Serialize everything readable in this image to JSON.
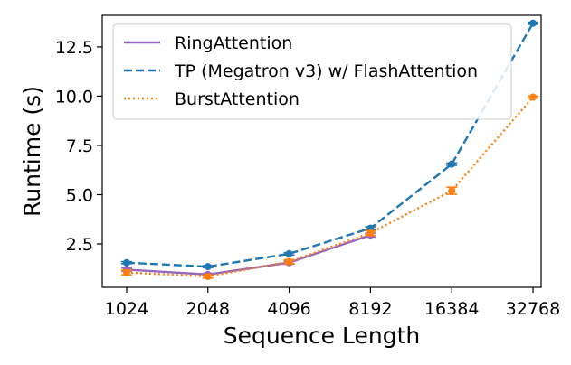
{
  "chart_data": {
    "type": "line",
    "xlabel": "Sequence Length",
    "ylabel": "Runtime (s)",
    "categories": [
      "1024",
      "2048",
      "4096",
      "8192",
      "16384",
      "32768"
    ],
    "y_ticks": [
      2.5,
      5.0,
      7.5,
      10.0,
      12.5
    ],
    "y_tick_labels": [
      "2.5",
      "5.0",
      "7.5",
      "10.0",
      "12.5"
    ],
    "ylim": [
      0.3,
      14.1
    ],
    "grid": false,
    "legend_position": "top-left",
    "series": [
      {
        "name": "RingAttention",
        "color": "#9467bd",
        "style": "solid",
        "values": [
          1.2,
          0.95,
          1.55,
          2.95,
          null,
          null
        ],
        "errors": [
          0.08,
          0.06,
          0.08,
          0.1,
          null,
          null
        ]
      },
      {
        "name": "TP (Megatron v3) w/ FlashAttention",
        "color": "#1f77b4",
        "style": "dashed",
        "values": [
          1.55,
          1.35,
          2.0,
          3.3,
          6.55,
          13.7
        ],
        "errors": [
          0.05,
          0.05,
          0.06,
          0.07,
          0.06,
          0.05
        ]
      },
      {
        "name": "BurstAttention",
        "color": "#ff7f0e",
        "style": "dotted",
        "values": [
          1.05,
          0.85,
          1.6,
          3.05,
          5.2,
          9.95
        ],
        "errors": [
          0.12,
          0.08,
          0.1,
          0.12,
          0.18,
          0.05
        ]
      }
    ]
  }
}
